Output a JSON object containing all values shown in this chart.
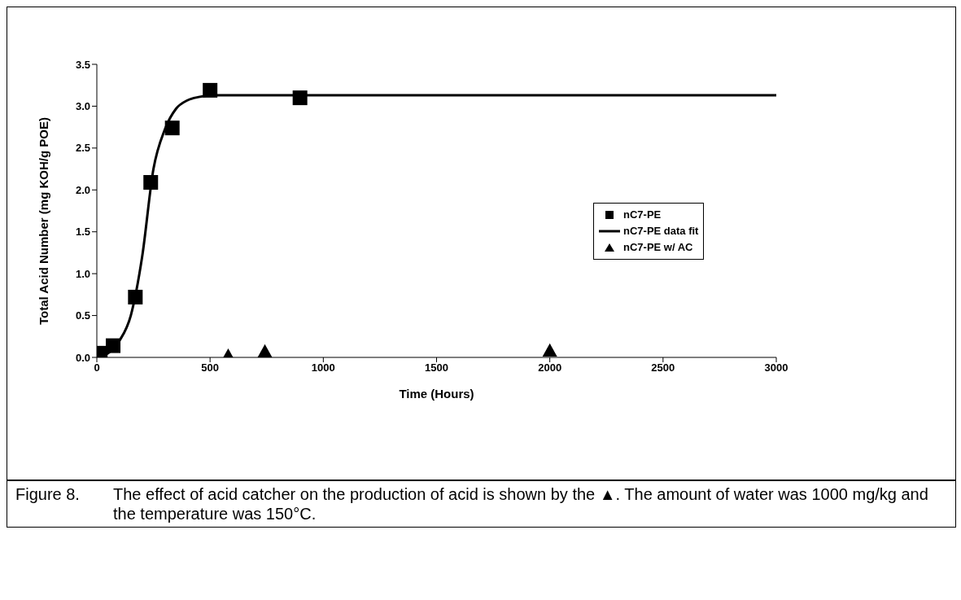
{
  "chart_data": {
    "type": "scatter",
    "xlabel": "Time (Hours)",
    "ylabel": "Total Acid Number (mg KOH/g POE)",
    "xlim": [
      0,
      3000
    ],
    "xticks": [
      0,
      500,
      1000,
      1500,
      2000,
      2500,
      3000
    ],
    "ylim": [
      0,
      3.5
    ],
    "yticks": [
      {
        "value": 0,
        "label": "0.0"
      },
      {
        "value": 0.5,
        "label": "0.5"
      },
      {
        "value": 1,
        "label": "1.0"
      },
      {
        "value": 1.5,
        "label": "1.5"
      },
      {
        "value": 2,
        "label": "2.0"
      },
      {
        "value": 2.5,
        "label": "2.5"
      },
      {
        "value": 3,
        "label": "3.0"
      },
      {
        "value": 3.5,
        "label": "3.5"
      }
    ],
    "grid": false,
    "legend": "right",
    "series": [
      {
        "name": "nC7-PE",
        "marker": "square",
        "color": "#000000",
        "x": [
          15,
          72,
          170,
          238,
          333,
          500,
          897
        ],
        "values": [
          0.05,
          0.14,
          0.72,
          2.09,
          2.74,
          3.19,
          3.1
        ]
      },
      {
        "name": "nC7-PE data fit",
        "type": "line",
        "marker": "none",
        "line_style": "solid",
        "color": "#000000",
        "x": [
          0,
          50,
          100,
          150,
          200,
          250,
          300,
          350,
          400,
          450,
          500,
          600,
          3000
        ],
        "values": [
          0,
          0.05,
          0.2,
          0.5,
          1.2,
          2.25,
          2.72,
          2.97,
          3.07,
          3.11,
          3.13,
          3.13,
          3.13
        ]
      },
      {
        "name": "nC7-PE w/ AC",
        "marker": "triangle",
        "color": "#000000",
        "x": [
          580,
          742,
          2000
        ],
        "values": [
          0.02,
          0.07,
          0.08
        ]
      }
    ],
    "annotations": [
      "Figure 8.\tThe effect of acid catcher on the production of acid is shown by the ▲. The amount of water was 1000 mg/kg and the temperature was 150°C."
    ]
  }
}
